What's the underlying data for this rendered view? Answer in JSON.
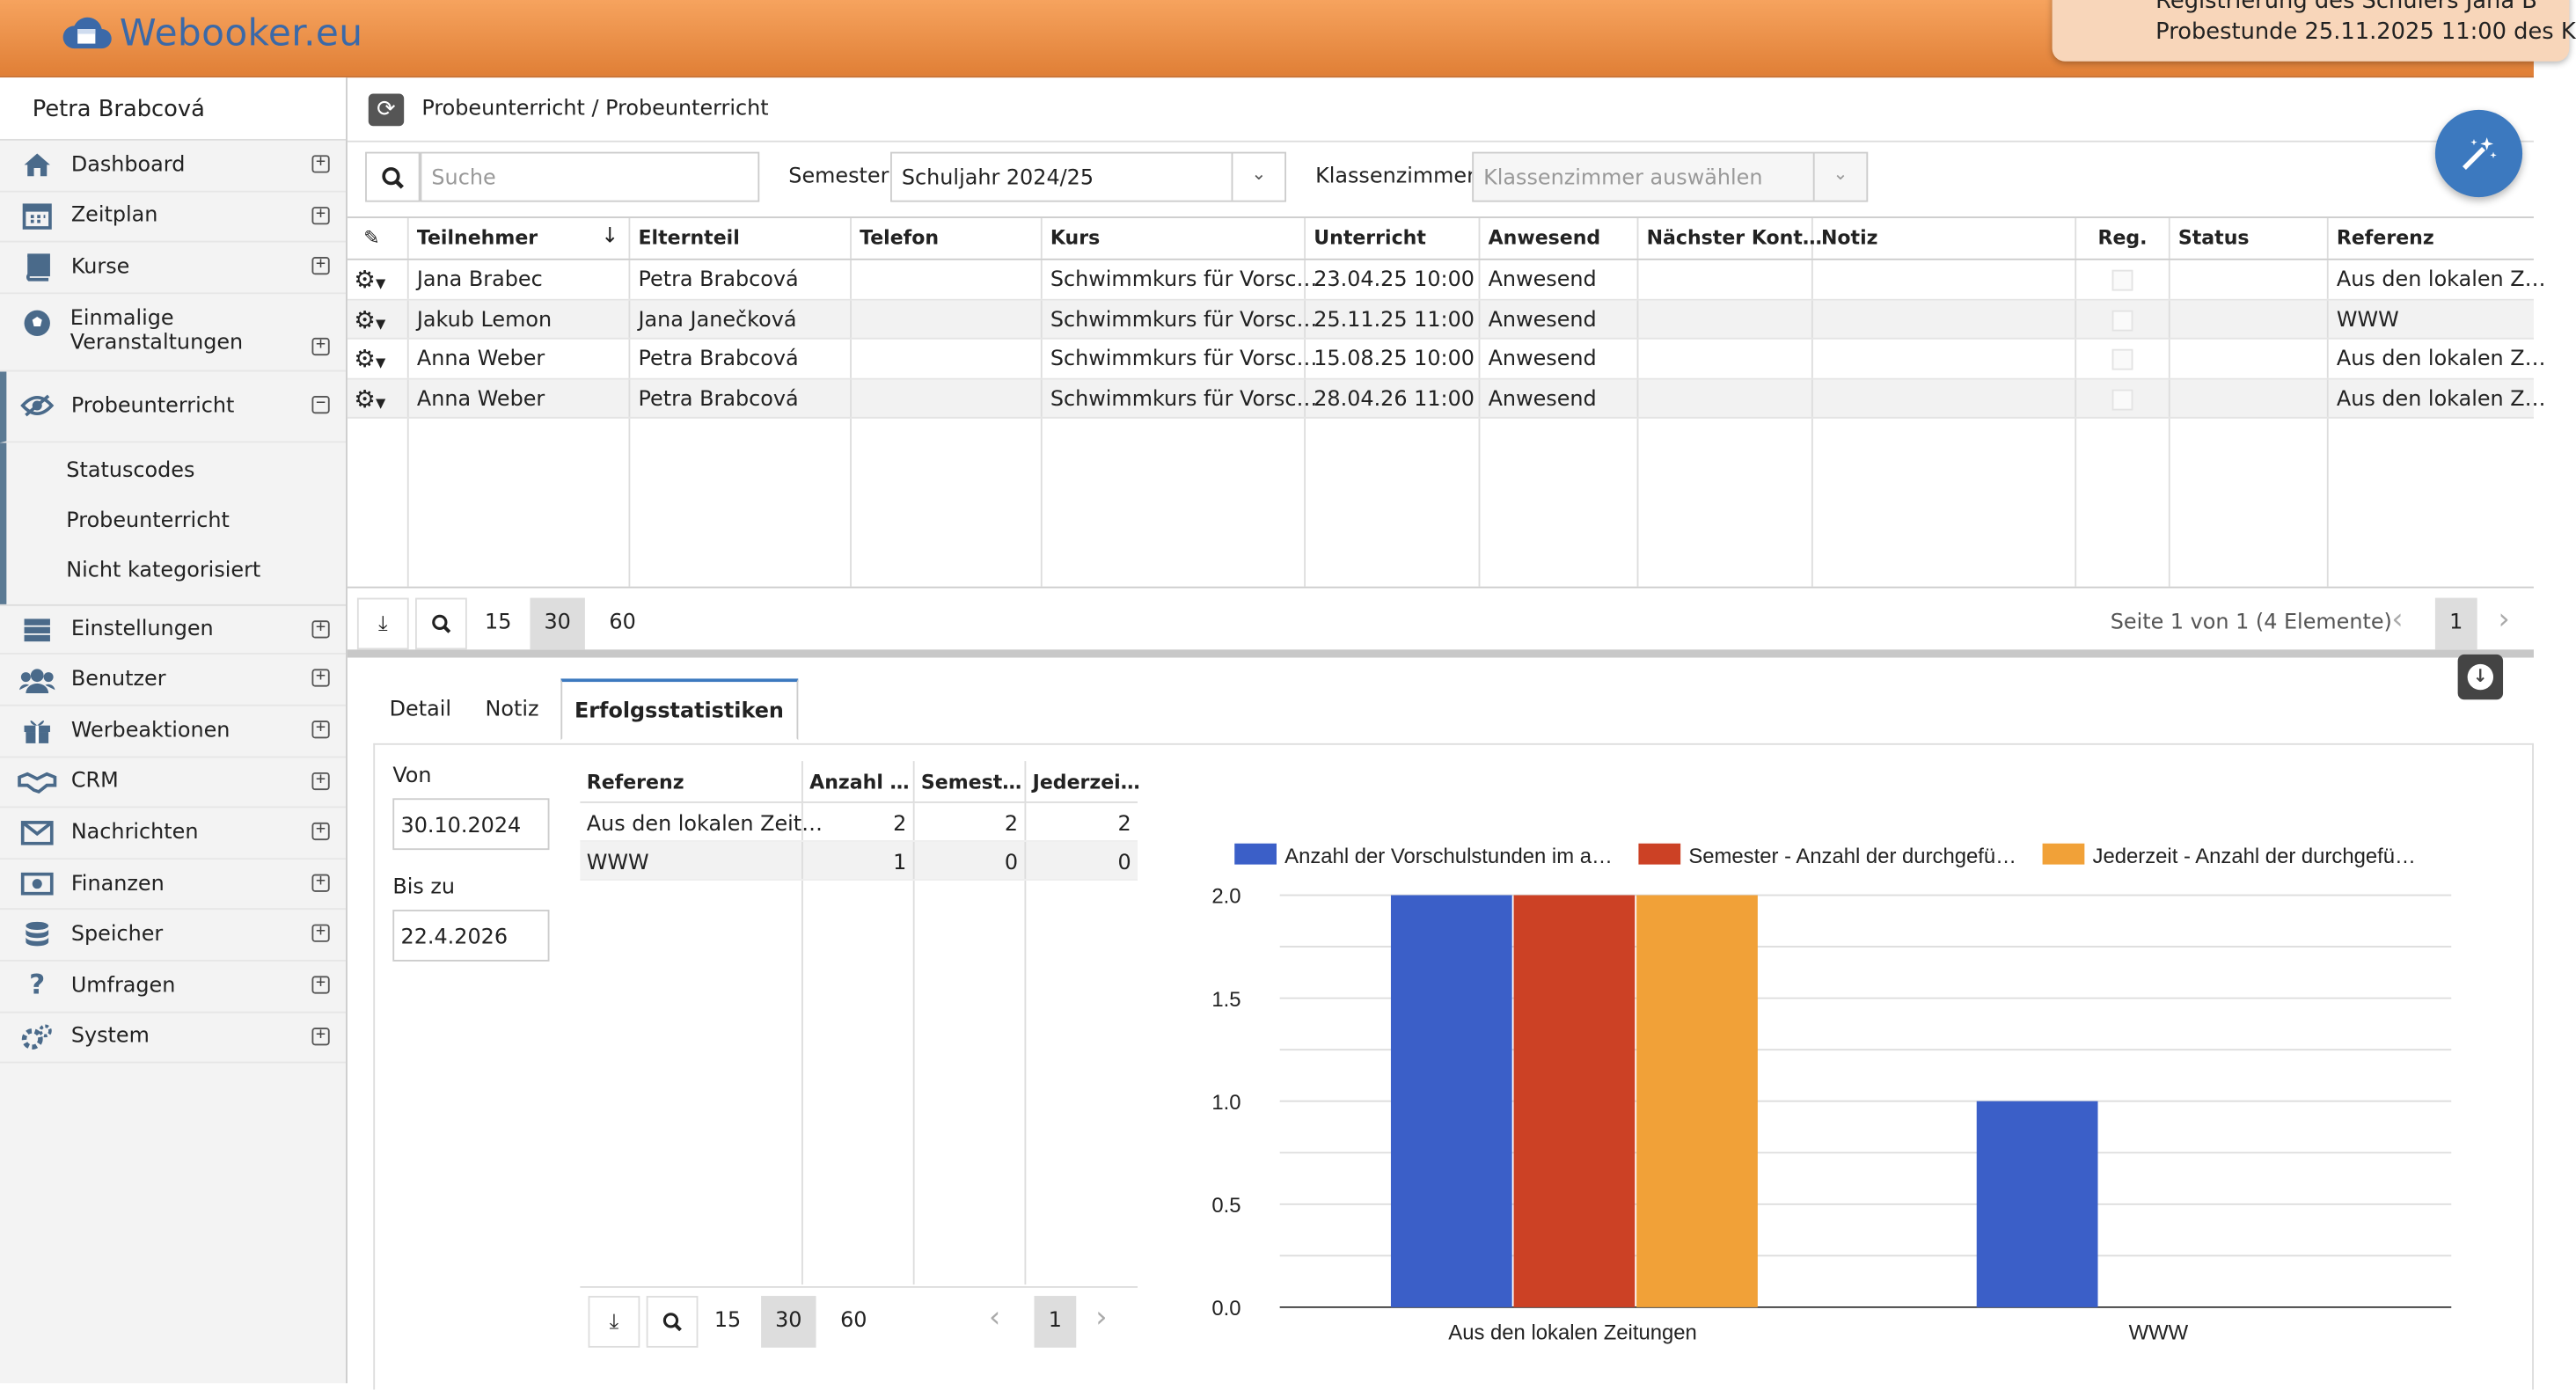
{
  "app": {
    "logo": "Webooker.eu"
  },
  "notification": {
    "line1": "Registrierung des Schülers Jana B",
    "line2": "Probestunde 25.11.2025 11:00 des K"
  },
  "sidebar": {
    "user": "Petra Brabcová",
    "items": [
      {
        "label": "Dashboard",
        "icon": "home-icon"
      },
      {
        "label": "Zeitplan",
        "icon": "calendar-icon"
      },
      {
        "label": "Kurse",
        "icon": "book-icon"
      },
      {
        "label": "Einmalige Veranstaltungen",
        "icon": "soccer-ball-icon"
      },
      {
        "label": "Probeunterricht",
        "icon": "eye-icon"
      },
      {
        "label": "Einstellungen",
        "icon": "settings-icon"
      },
      {
        "label": "Benutzer",
        "icon": "users-icon"
      },
      {
        "label": "Werbeaktionen",
        "icon": "gift-icon"
      },
      {
        "label": "CRM",
        "icon": "handshake-icon"
      },
      {
        "label": "Nachrichten",
        "icon": "envelope-icon"
      },
      {
        "label": "Finanzen",
        "icon": "money-icon"
      },
      {
        "label": "Speicher",
        "icon": "database-icon"
      },
      {
        "label": "Umfragen",
        "icon": "question-icon"
      },
      {
        "label": "System",
        "icon": "gears-icon"
      }
    ],
    "subitems": [
      "Statuscodes",
      "Probeunterricht",
      "Nicht kategorisiert"
    ]
  },
  "breadcrumb": "Probeunterricht / Probeunterricht",
  "filters": {
    "search_placeholder": "Suche",
    "semester_label": "Semester:",
    "semester_value": "Schuljahr 2024/25",
    "room_label": "Klassenzimmer:",
    "room_placeholder": "Klassenzimmer auswählen"
  },
  "grid": {
    "columns": [
      "Teilnehmer",
      "Elternteil",
      "Telefon",
      "Kurs",
      "Unterricht",
      "Anwesend",
      "Nächster Kont…",
      "Notiz",
      "Reg.",
      "Status",
      "Referenz"
    ],
    "rows": [
      [
        "Jana Brabec",
        "Petra Brabcová",
        "",
        "Schwimmkurs für Vorsc…",
        "23.04.25 10:00",
        "Anwesend",
        "",
        "",
        "",
        "",
        "Aus den lokalen Z…"
      ],
      [
        "Jakub Lemon",
        "Jana Janečková",
        "",
        "Schwimmkurs für Vorsc…",
        "25.11.25 11:00",
        "Anwesend",
        "",
        "",
        "",
        "",
        "WWW"
      ],
      [
        "Anna Weber",
        "Petra Brabcová",
        "",
        "Schwimmkurs für Vorsc…",
        "15.08.25 10:00",
        "Anwesend",
        "",
        "",
        "",
        "",
        "Aus den lokalen Z…"
      ],
      [
        "Anna Weber",
        "Petra Brabcová",
        "",
        "Schwimmkurs für Vorsc…",
        "28.04.26 11:00",
        "Anwesend",
        "",
        "",
        "",
        "",
        "Aus den lokalen Z…"
      ]
    ]
  },
  "pager": {
    "sizes": [
      "15",
      "30",
      "60"
    ],
    "selected": "30",
    "info": "Seite 1 von 1 (4 Elemente)",
    "page": "1"
  },
  "tabs": [
    "Detail",
    "Notiz",
    "Erfolgsstatistiken"
  ],
  "stats": {
    "from_label": "Von",
    "from_value": "30.10.2024",
    "to_label": "Bis zu",
    "to_value": "22.4.2026",
    "columns": [
      "Referenz",
      "Anzahl …",
      "Semest…",
      "Jederzei…"
    ],
    "rows": [
      [
        "Aus den lokalen Zeit…",
        "2",
        "2",
        "2"
      ],
      [
        "WWW",
        "1",
        "0",
        "0"
      ]
    ],
    "pager": {
      "sizes": [
        "15",
        "30",
        "60"
      ],
      "selected": "30",
      "page": "1"
    }
  },
  "chart_data": {
    "type": "bar",
    "categories": [
      "Aus den lokalen Zeitungen",
      "WWW"
    ],
    "series": [
      {
        "name": "Anzahl der Vorschulstunden im a…",
        "values": [
          2,
          1
        ],
        "color": "#3b5fc8"
      },
      {
        "name": "Semester - Anzahl der durchgefü…",
        "values": [
          2,
          0
        ],
        "color": "#cc4125"
      },
      {
        "name": "Jederzeit - Anzahl der durchgefü…",
        "values": [
          2,
          0
        ],
        "color": "#f1a138"
      }
    ],
    "ylim": [
      0,
      2
    ],
    "yticks": [
      "0.0",
      "0.5",
      "1.0",
      "1.5",
      "2.0"
    ],
    "legend": "top",
    "grid": true
  }
}
